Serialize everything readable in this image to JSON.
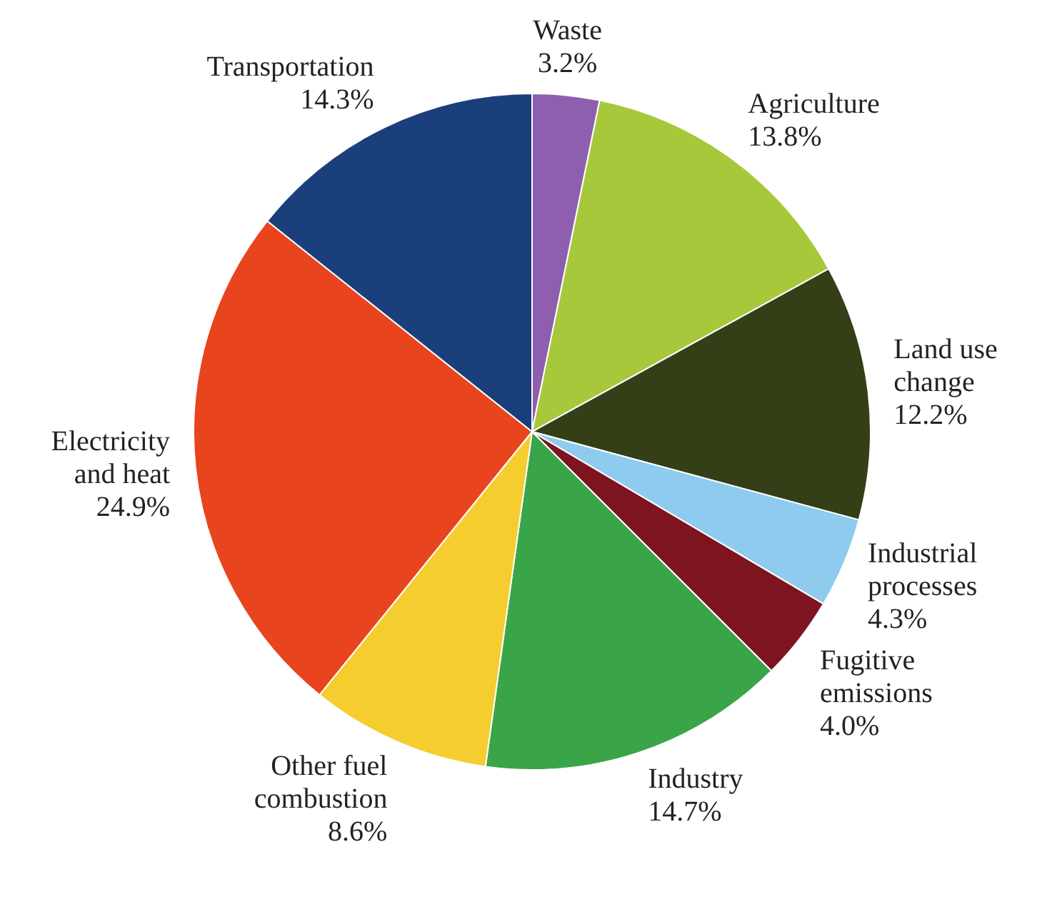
{
  "chart_data": {
    "type": "pie",
    "categories": [
      "Waste",
      "Agriculture",
      "Land use change",
      "Industrial processes",
      "Fugitive emissions",
      "Industry",
      "Other fuel combustion",
      "Electricity and heat",
      "Transportation"
    ],
    "values": [
      3.2,
      13.8,
      12.2,
      4.3,
      4.0,
      14.7,
      8.6,
      24.9,
      14.3
    ],
    "colors": [
      "#8e5fae",
      "#a8c83c",
      "#343f17",
      "#8ecbee",
      "#7d1420",
      "#3aa548",
      "#f5cd2e",
      "#e8451e",
      "#1b3f7b"
    ],
    "value_labels": [
      "3.2%",
      "13.8%",
      "12.2%",
      "4.3%",
      "4.0%",
      "14.7%",
      "8.6%",
      "24.9%",
      "14.3%"
    ],
    "legend": false
  }
}
